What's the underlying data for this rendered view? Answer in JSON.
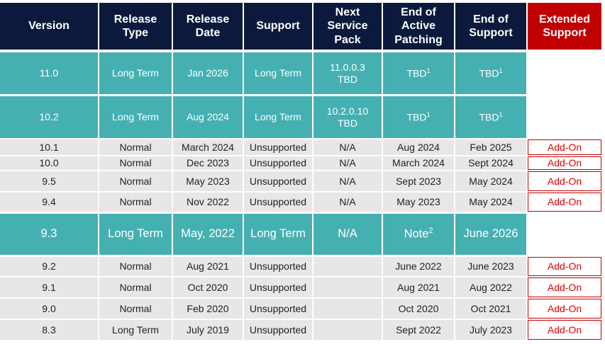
{
  "table": {
    "header": [
      "Version",
      "Release Type",
      "Release Date",
      "Support",
      "Next Service Pack",
      "End of Active Patching",
      "End of Support",
      "Extended Support"
    ],
    "rows": [
      [
        "11.0",
        "Long Term",
        "Jan 2026",
        "Long Term",
        [
          "11.0.0.3",
          "TBD"
        ],
        {
          "text": "TBD",
          "sup": "1"
        },
        {
          "text": "TBD",
          "sup": "1"
        },
        null
      ],
      [
        "10.2",
        "Long Term",
        "Aug 2024",
        "Long Term",
        [
          "10.2.0.10",
          "TBD"
        ],
        {
          "text": "TBD",
          "sup": "1"
        },
        {
          "text": "TBD",
          "sup": "1"
        },
        null
      ],
      [
        "10.1",
        "Normal",
        "March 2024",
        "Unsupported",
        "N/A",
        "Aug 2024",
        "Feb 2025",
        "Add-On"
      ],
      [
        "10.0",
        "Normal",
        "Dec 2023",
        "Unsupported",
        "N/A",
        "March 2024",
        "Sept 2024",
        "Add-On"
      ],
      [
        "9.5",
        "Normal",
        "May 2023",
        "Unsupported",
        "N/A",
        "Sept 2023",
        "May 2024",
        "Add-On"
      ],
      [
        "9.4",
        "Normal",
        "Nov 2022",
        "Unsupported",
        "N/A",
        "May 2023",
        "May 2024",
        "Add-On"
      ],
      [
        "9.3",
        "Long Term",
        "May, 2022",
        "Long Term",
        "N/A",
        {
          "text": "Note",
          "sup": "2"
        },
        "June 2026",
        null
      ],
      [
        "9.2",
        "Normal",
        "Aug 2021",
        "Unsupported",
        null,
        "June 2022",
        "June 2023",
        "Add-On"
      ],
      [
        "9.1",
        "Normal",
        "Oct 2020",
        "Unsupported",
        null,
        "Aug 2021",
        "Aug 2022",
        "Add-On"
      ],
      [
        "9.0",
        "Normal",
        "Feb 2020",
        "Unsupported",
        null,
        "Oct 2020",
        "Oct 2021",
        "Add-On"
      ],
      [
        "8.3",
        "Long Term",
        "July 2019",
        "Unsupported",
        null,
        "Sept 2022",
        "July 2023",
        "Add-On"
      ]
    ]
  }
}
